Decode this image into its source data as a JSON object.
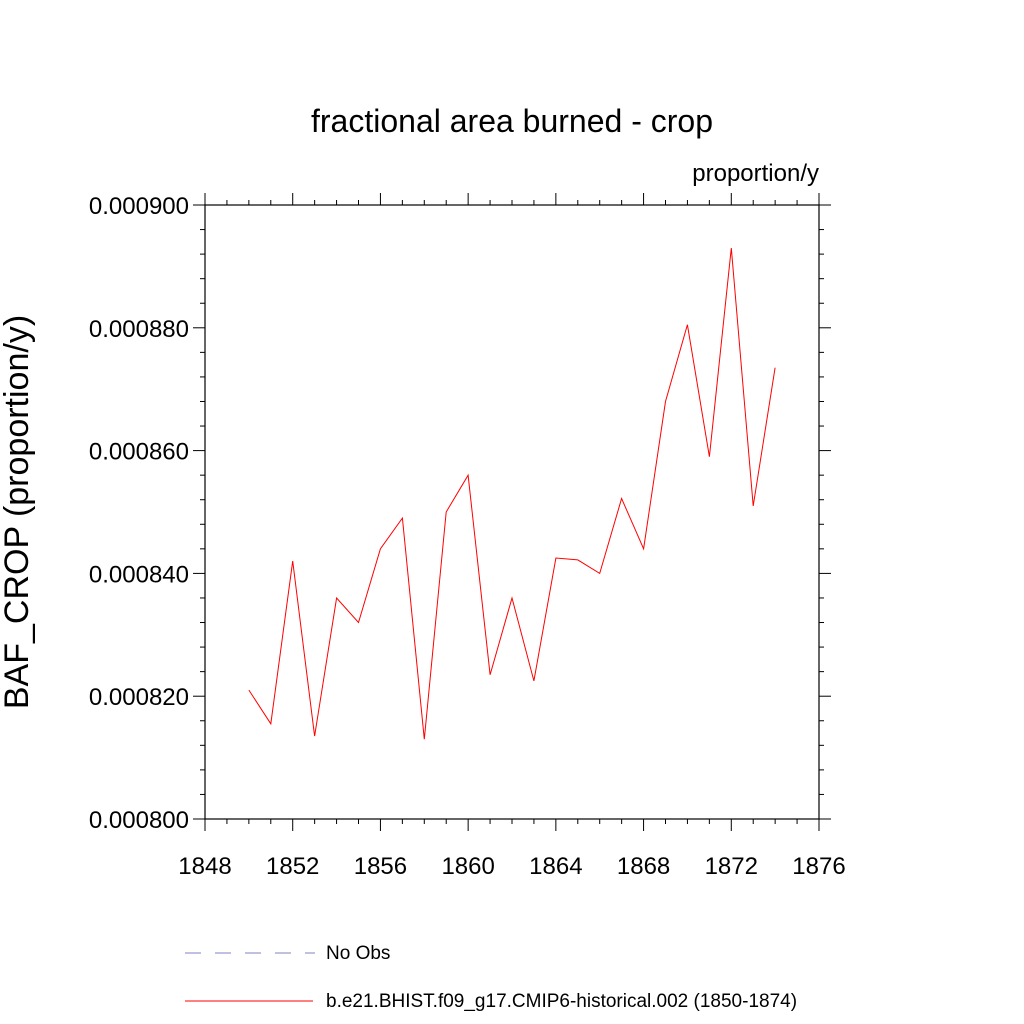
{
  "chart_data": {
    "type": "line",
    "title": "fractional area burned - crop",
    "units_label": "proportion/y",
    "ylabel": "BAF_CROP  (proportion/y)",
    "xlabel": "",
    "xlim": [
      1848,
      1876
    ],
    "ylim": [
      0.0008,
      0.0009
    ],
    "x_ticks": [
      1848,
      1852,
      1856,
      1860,
      1864,
      1868,
      1872,
      1876
    ],
    "x_tick_labels": [
      "1848",
      "1852",
      "1856",
      "1860",
      "1864",
      "1868",
      "1872",
      "1876"
    ],
    "y_ticks": [
      0.0008,
      0.00082,
      0.00084,
      0.00086,
      0.00088,
      0.0009
    ],
    "y_tick_labels": [
      "0.000800",
      "0.000820",
      "0.000840",
      "0.000860",
      "0.000880",
      "0.000900"
    ],
    "grid": false,
    "legend_position": "bottom",
    "series": [
      {
        "name": "No Obs",
        "color": "#8080c0",
        "dash": true,
        "x": [],
        "y": []
      },
      {
        "name": "b.e21.BHIST.f09_g17.CMIP6-historical.002 (1850-1874)",
        "color": "#ff0000",
        "dash": false,
        "x": [
          1850,
          1851,
          1852,
          1853,
          1854,
          1855,
          1856,
          1857,
          1858,
          1859,
          1860,
          1861,
          1862,
          1863,
          1864,
          1865,
          1866,
          1867,
          1868,
          1869,
          1870,
          1871,
          1872,
          1873,
          1874
        ],
        "y": [
          0.000821,
          0.0008155,
          0.000842,
          0.0008135,
          0.000836,
          0.000832,
          0.000844,
          0.000849,
          0.000813,
          0.00085,
          0.000856,
          0.0008235,
          0.000836,
          0.0008225,
          0.0008425,
          0.0008422,
          0.00084,
          0.0008522,
          0.000844,
          0.000868,
          0.0008805,
          0.000859,
          0.000893,
          0.000851,
          0.0008735
        ]
      }
    ]
  }
}
